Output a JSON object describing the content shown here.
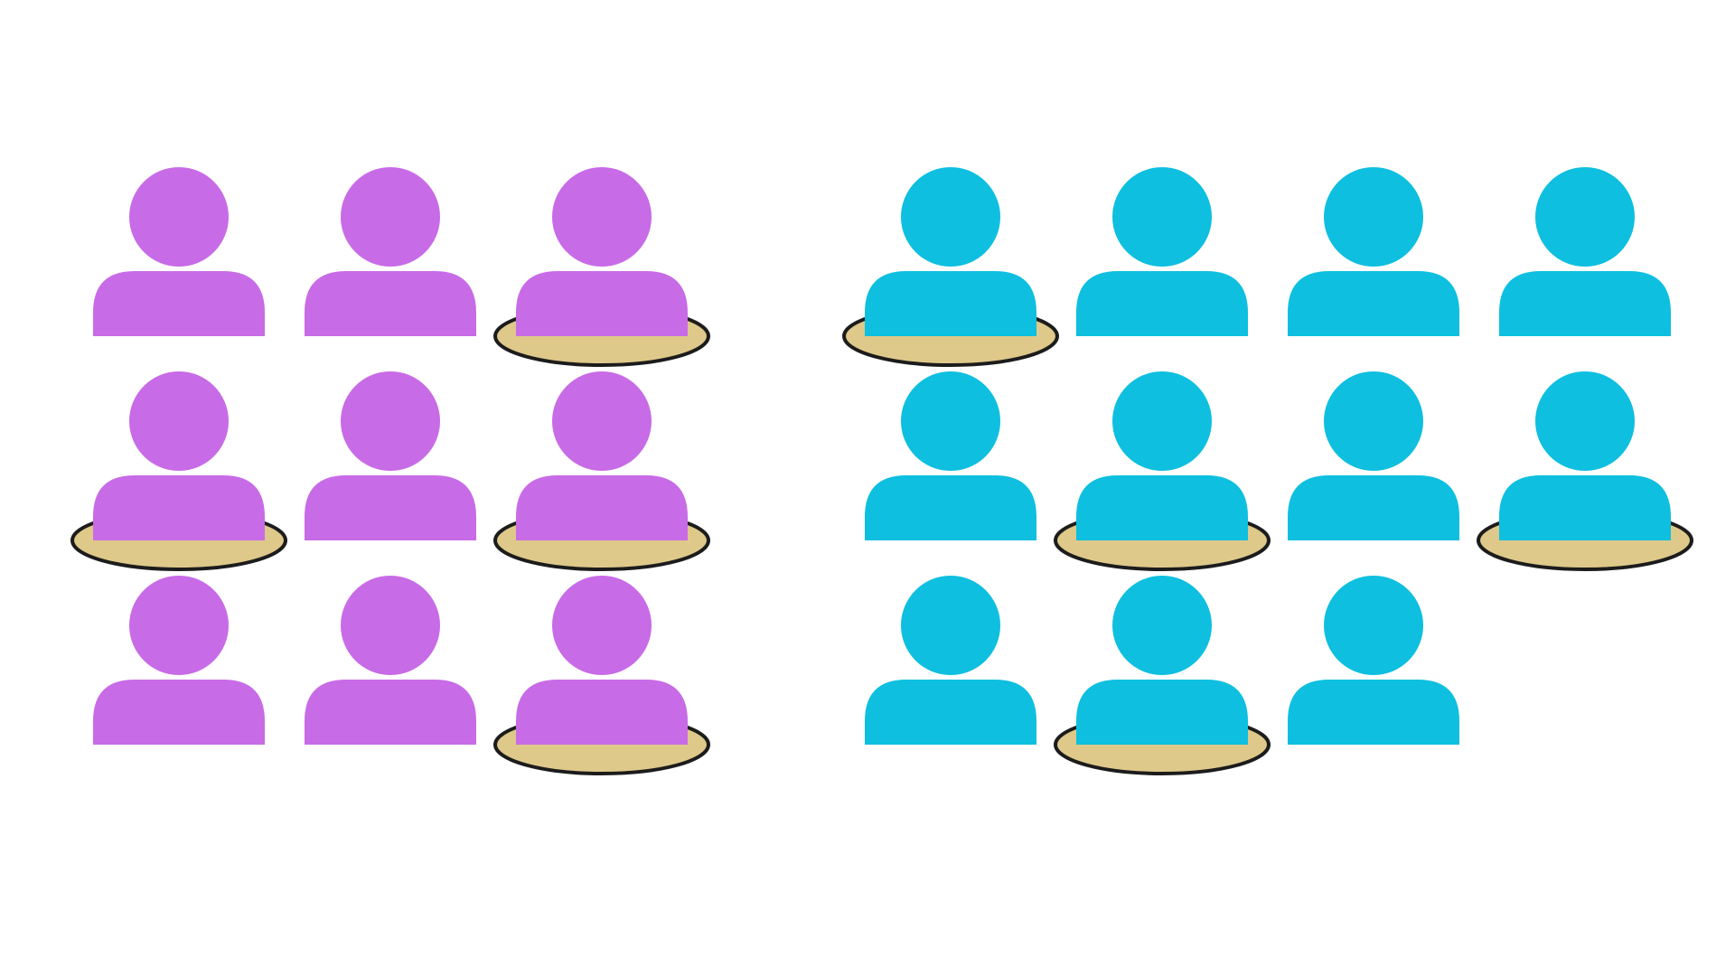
{
  "colors": {
    "background": "#ffffff",
    "group_a": "#c86be6",
    "group_b": "#0ebfdf",
    "disk_fill": "#dec98a",
    "disk_stroke": "#1c1c1c"
  },
  "groups": [
    {
      "name": "group-a",
      "color_key": "group_a",
      "columns": 3,
      "count": 9,
      "marked": [
        2,
        3,
        5,
        8
      ]
    },
    {
      "name": "group-b",
      "color_key": "group_b",
      "columns": 4,
      "count": 11,
      "marked": [
        0,
        5,
        7,
        9
      ]
    }
  ],
  "icon_semantics": {
    "person": "person-icon",
    "disk": "disk-marker"
  }
}
